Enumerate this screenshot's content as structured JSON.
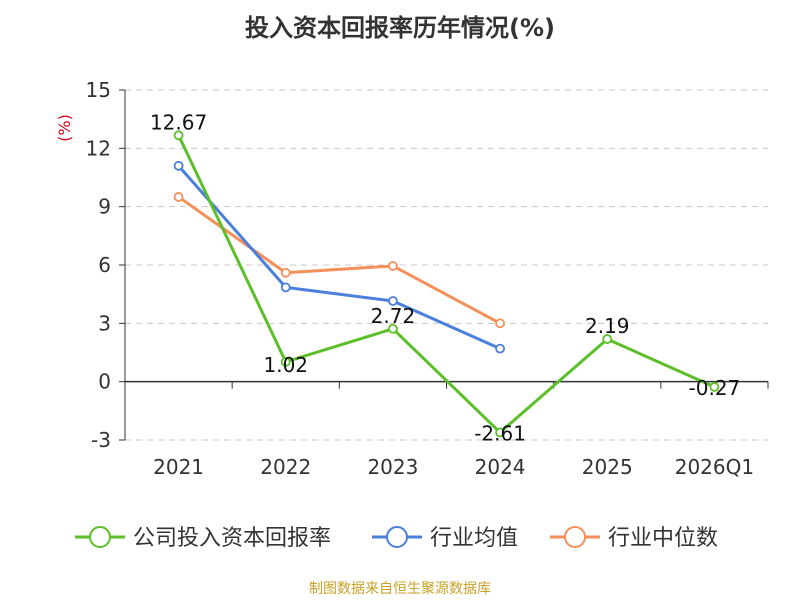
{
  "title": "投入资本回报率历年情况(%)",
  "source": "制图数据来自恒生聚源数据库",
  "chart_data": {
    "type": "line",
    "title": "投入资本回报率历年情况(%)",
    "ylabel": "(%)",
    "ylim": [
      -3,
      15
    ],
    "yticks": [
      15,
      12,
      9,
      6,
      3,
      0,
      -3
    ],
    "grid": true,
    "legend_position": "bottom",
    "categories": [
      "2021",
      "2022",
      "2023",
      "2024",
      "2025",
      "2026Q1"
    ],
    "series": [
      {
        "name": "公司投入资本回报率",
        "color": "#5cbf2a",
        "values": [
          12.67,
          1.02,
          2.72,
          -2.61,
          2.19,
          -0.27
        ],
        "labels": [
          "12.67",
          "1.02",
          "2.72",
          "-2.61",
          "2.19",
          "-0.27"
        ]
      },
      {
        "name": "行业均值",
        "color": "#4a7fdc",
        "values": [
          11.1,
          4.85,
          4.15,
          1.7,
          null,
          null
        ]
      },
      {
        "name": "行业中位数",
        "color": "#f58f5a",
        "values": [
          9.5,
          5.6,
          5.95,
          3.0,
          null,
          null
        ]
      }
    ]
  }
}
